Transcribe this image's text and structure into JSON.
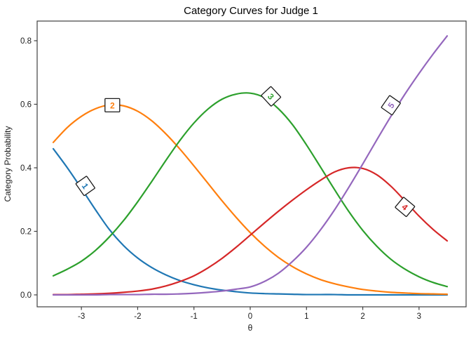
{
  "title": "Category Curves for Judge 1",
  "chart_data": {
    "type": "line",
    "title": "Category Curves for Judge 1",
    "xlabel": "θ",
    "ylabel": "Category  Probability",
    "xlim": [
      -3.79,
      3.84
    ],
    "ylim": [
      -0.038,
      0.862
    ],
    "x_ticks": [
      -3,
      -2,
      -1,
      0,
      1,
      2,
      3
    ],
    "y_ticks": [
      0.0,
      0.2,
      0.4,
      0.6,
      0.8
    ],
    "grid": false,
    "legend_position": "none",
    "axis_color": "#404040",
    "text_color": "#1a1a1a",
    "x": [
      -3.5,
      -3.25,
      -3.0,
      -2.75,
      -2.5,
      -2.25,
      -2.0,
      -1.75,
      -1.5,
      -1.25,
      -1.0,
      -0.75,
      -0.5,
      -0.25,
      0.0,
      0.25,
      0.5,
      0.75,
      1.0,
      1.25,
      1.5,
      1.75,
      2.0,
      2.25,
      2.5,
      2.75,
      3.0,
      3.25,
      3.5
    ],
    "series": [
      {
        "name": "1",
        "color": "#1f77b4",
        "values": [
          0.46,
          0.4,
          0.335,
          0.268,
          0.205,
          0.155,
          0.116,
          0.086,
          0.063,
          0.045,
          0.032,
          0.022,
          0.015,
          0.01,
          0.006,
          0.004,
          0.003,
          0.002,
          0.001,
          0.001,
          0.001,
          0.0,
          0.0,
          0.0,
          0.0,
          0.0,
          0.0,
          0.0,
          0.0
        ]
      },
      {
        "name": "2",
        "color": "#ff7f0e",
        "values": [
          0.48,
          0.527,
          0.562,
          0.586,
          0.598,
          0.595,
          0.578,
          0.548,
          0.507,
          0.459,
          0.406,
          0.351,
          0.296,
          0.244,
          0.196,
          0.154,
          0.118,
          0.089,
          0.066,
          0.048,
          0.035,
          0.025,
          0.017,
          0.012,
          0.008,
          0.006,
          0.004,
          0.003,
          0.002
        ]
      },
      {
        "name": "3",
        "color": "#2ca02c",
        "values": [
          0.06,
          0.081,
          0.106,
          0.14,
          0.183,
          0.234,
          0.293,
          0.357,
          0.423,
          0.486,
          0.541,
          0.585,
          0.616,
          0.632,
          0.635,
          0.621,
          0.586,
          0.536,
          0.472,
          0.402,
          0.331,
          0.263,
          0.203,
          0.153,
          0.112,
          0.081,
          0.057,
          0.039,
          0.026
        ]
      },
      {
        "name": "4",
        "color": "#d62728",
        "values": [
          0.001,
          0.001,
          0.002,
          0.003,
          0.005,
          0.008,
          0.012,
          0.018,
          0.028,
          0.042,
          0.06,
          0.085,
          0.115,
          0.15,
          0.188,
          0.226,
          0.263,
          0.298,
          0.331,
          0.361,
          0.387,
          0.4,
          0.398,
          0.378,
          0.342,
          0.296,
          0.248,
          0.206,
          0.17
        ]
      },
      {
        "name": "5",
        "color": "#9467bd",
        "values": [
          0.0,
          0.0,
          0.0,
          0.0,
          0.001,
          0.001,
          0.001,
          0.002,
          0.002,
          0.003,
          0.005,
          0.008,
          0.012,
          0.018,
          0.025,
          0.042,
          0.068,
          0.105,
          0.15,
          0.205,
          0.268,
          0.338,
          0.412,
          0.488,
          0.562,
          0.632,
          0.697,
          0.758,
          0.815
        ]
      }
    ],
    "curve_labels": [
      {
        "text": "1",
        "series": "1",
        "color": "#1f77b4",
        "theta": -2.93,
        "prob": 0.343,
        "rotation": 55
      },
      {
        "text": "2",
        "series": "2",
        "color": "#ff7f0e",
        "theta": -2.45,
        "prob": 0.597,
        "rotation": 0
      },
      {
        "text": "3",
        "series": "3",
        "color": "#2ca02c",
        "theta": 0.37,
        "prob": 0.625,
        "rotation": 47
      },
      {
        "text": "4",
        "series": "4",
        "color": "#d62728",
        "theta": 2.75,
        "prob": 0.277,
        "rotation": 40
      },
      {
        "text": "5",
        "series": "5",
        "color": "#9467bd",
        "theta": 2.5,
        "prob": 0.597,
        "rotation": -55
      }
    ]
  },
  "layout_note": "single static plot, white background, black rectangular frame, ticks outside"
}
